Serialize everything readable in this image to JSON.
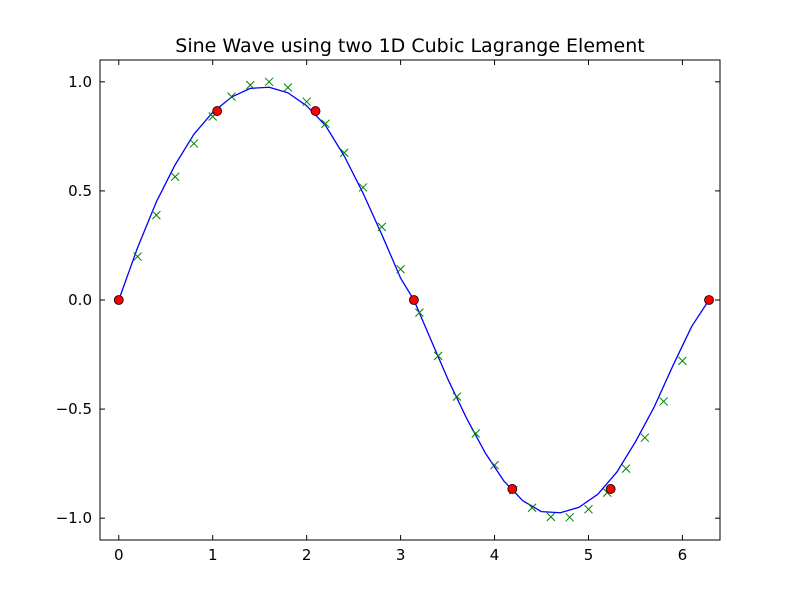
{
  "chart_data": {
    "type": "line",
    "title": "Sine Wave using two 1D Cubic Lagrange Element",
    "xlabel": "",
    "ylabel": "",
    "xlim": [
      -0.2,
      6.4
    ],
    "ylim": [
      -1.1,
      1.1
    ],
    "grid": false,
    "xticks": [
      0,
      1,
      2,
      3,
      4,
      5,
      6
    ],
    "yticks": [
      -1.0,
      -0.5,
      0.0,
      0.5,
      1.0
    ],
    "xtick_labels": [
      "0",
      "1",
      "2",
      "3",
      "4",
      "5",
      "6"
    ],
    "ytick_labels": [
      "−1.0",
      "−0.5",
      "0.0",
      "0.5",
      "1.0"
    ],
    "series": [
      {
        "kind": "curve",
        "color": "#0000ff",
        "x": [
          0,
          0.2,
          0.4,
          0.6,
          0.8,
          1.0,
          1.2,
          1.4,
          1.6,
          1.8,
          2.0,
          2.2,
          2.4,
          2.6,
          2.8,
          3.0,
          3.1416,
          3.3,
          3.5,
          3.7,
          3.9,
          4.1,
          4.3,
          4.5,
          4.7,
          4.9,
          5.1,
          5.3,
          5.5,
          5.7,
          5.9,
          6.1,
          6.2832
        ],
        "y": [
          0,
          0.24,
          0.45,
          0.62,
          0.76,
          0.86,
          0.93,
          0.97,
          0.975,
          0.95,
          0.89,
          0.8,
          0.66,
          0.49,
          0.3,
          0.1,
          0,
          -0.16,
          -0.36,
          -0.54,
          -0.7,
          -0.83,
          -0.92,
          -0.97,
          -0.975,
          -0.95,
          -0.89,
          -0.79,
          -0.65,
          -0.49,
          -0.3,
          -0.12,
          0
        ]
      },
      {
        "kind": "markers-x",
        "color": "#008000",
        "x": [
          0.2,
          0.4,
          0.6,
          0.8,
          1.0,
          1.2,
          1.4,
          1.6,
          1.8,
          2.0,
          2.2,
          2.4,
          2.6,
          2.8,
          3.0,
          3.2,
          3.4,
          3.6,
          3.8,
          4.0,
          4.2,
          4.4,
          4.6,
          4.8,
          5.0,
          5.2,
          5.4,
          5.6,
          5.8,
          6.0
        ],
        "y": [
          0.199,
          0.389,
          0.565,
          0.717,
          0.841,
          0.932,
          0.985,
          1.0,
          0.974,
          0.909,
          0.808,
          0.675,
          0.516,
          0.335,
          0.141,
          -0.058,
          -0.256,
          -0.443,
          -0.612,
          -0.757,
          -0.872,
          -0.952,
          -0.994,
          -0.996,
          -0.959,
          -0.883,
          -0.773,
          -0.631,
          -0.465,
          -0.279
        ]
      },
      {
        "kind": "markers-dot",
        "color": "#ff0000",
        "x": [
          0,
          1.0472,
          2.0944,
          3.1416,
          4.1888,
          5.236,
          6.2832
        ],
        "y": [
          0,
          0.866,
          0.866,
          0,
          -0.866,
          -0.866,
          0
        ]
      }
    ]
  }
}
